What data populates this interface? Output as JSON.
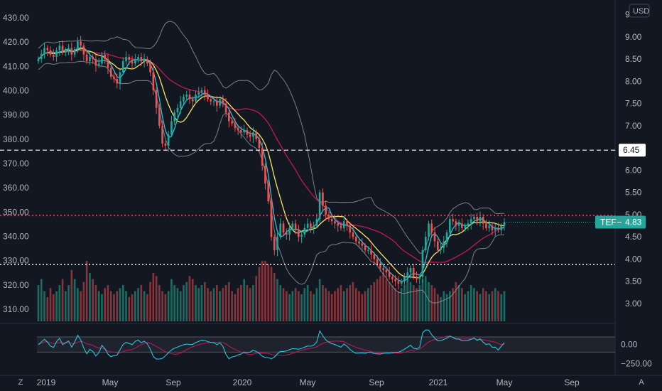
{
  "chart_data": {
    "type": "candlestick",
    "symbol": "TEF",
    "currency": "USD",
    "last_price_label": "4.83",
    "left_axis": {
      "ticks": [
        "430.00",
        "420.00",
        "410.00",
        "400.00",
        "390.00",
        "380.00",
        "370.00",
        "360.00",
        "350.00",
        "340.00",
        "330.00",
        "320.00",
        "310.00"
      ],
      "range": [
        305,
        435
      ]
    },
    "right_axis": {
      "ticks": [
        "9.50",
        "9.00",
        "8.50",
        "8.00",
        "7.50",
        "7.00",
        "6.45",
        "6.00",
        "5.50",
        "5.00",
        "4.50",
        "4.00",
        "3.50",
        "3.00"
      ],
      "range": [
        2.6,
        9.7
      ]
    },
    "x_axis": {
      "ticks": [
        "2019",
        "May",
        "Sep",
        "2020",
        "May",
        "Sep",
        "2021",
        "May",
        "Sep"
      ]
    },
    "horizontal_levels": [
      {
        "value": 6.45,
        "style": "dashed",
        "color": "#ffffff",
        "label": "6.45"
      },
      {
        "value": 4.98,
        "style": "dotted",
        "color": "#f23645"
      },
      {
        "value": 3.88,
        "style": "dotted",
        "color": "#d1d4dc"
      }
    ],
    "close_series": [
      8.5,
      8.62,
      8.75,
      8.7,
      8.6,
      8.55,
      8.7,
      8.8,
      8.65,
      8.7,
      8.75,
      8.6,
      8.72,
      8.9,
      8.8,
      8.6,
      8.45,
      8.55,
      8.5,
      8.35,
      8.4,
      8.6,
      8.5,
      8.3,
      8.1,
      8.05,
      7.95,
      8.2,
      8.45,
      8.55,
      8.48,
      8.4,
      8.5,
      8.55,
      8.45,
      8.5,
      8.4,
      8.2,
      7.8,
      7.4,
      7.0,
      6.6,
      6.55,
      6.8,
      7.1,
      7.3,
      7.4,
      7.55,
      7.65,
      7.7,
      7.6,
      7.55,
      7.7,
      7.75,
      7.8,
      7.7,
      7.6,
      7.55,
      7.55,
      7.45,
      7.6,
      7.5,
      7.3,
      7.1,
      7.05,
      6.95,
      6.9,
      6.85,
      6.9,
      6.8,
      6.75,
      6.85,
      6.7,
      6.5,
      6.1,
      5.7,
      5.3,
      4.5,
      4.2,
      4.5,
      4.8,
      4.6,
      4.55,
      4.7,
      4.8,
      4.65,
      4.5,
      4.55,
      4.7,
      4.8,
      4.7,
      4.75,
      4.9,
      5.5,
      5.2,
      5.0,
      4.9,
      4.85,
      4.8,
      4.75,
      4.7,
      4.85,
      4.75,
      4.6,
      4.5,
      4.4,
      4.35,
      4.3,
      4.2,
      4.2,
      4.1,
      4.0,
      3.9,
      3.8,
      3.75,
      3.7,
      3.6,
      3.55,
      3.5,
      3.45,
      3.5,
      3.6,
      3.7,
      3.8,
      3.6,
      3.55,
      3.6,
      4.2,
      4.5,
      4.8,
      4.6,
      4.4,
      4.2,
      4.25,
      4.4,
      4.6,
      4.9,
      4.85,
      4.75,
      4.8,
      4.7,
      4.75,
      4.8,
      4.9,
      4.95,
      4.85,
      4.95,
      4.8,
      4.7,
      4.75,
      4.65,
      4.7,
      4.65,
      4.75,
      4.83
    ],
    "volume_relative": [
      0.6,
      0.7,
      0.5,
      0.4,
      0.55,
      0.45,
      0.5,
      0.6,
      0.7,
      0.5,
      0.6,
      0.85,
      0.7,
      0.55,
      0.5,
      0.65,
      1.0,
      0.8,
      0.7,
      0.6,
      0.5,
      0.45,
      0.55,
      0.6,
      0.5,
      0.45,
      0.5,
      0.55,
      0.6,
      0.5,
      0.4,
      0.45,
      0.5,
      0.55,
      0.6,
      0.5,
      0.45,
      0.65,
      0.8,
      0.75,
      0.6,
      0.5,
      0.45,
      0.5,
      0.7,
      0.6,
      0.55,
      0.5,
      0.6,
      0.65,
      0.75,
      0.7,
      0.6,
      0.55,
      0.6,
      0.65,
      0.55,
      0.5,
      0.55,
      0.6,
      0.5,
      0.55,
      0.6,
      0.65,
      0.5,
      0.45,
      0.55,
      0.6,
      0.7,
      0.6,
      0.55,
      0.6,
      0.75,
      0.9,
      1.0,
      1.0,
      0.95,
      0.9,
      0.8,
      0.7,
      0.6,
      0.55,
      0.5,
      0.45,
      0.5,
      0.55,
      0.5,
      0.45,
      0.55,
      0.6,
      0.5,
      0.45,
      0.55,
      0.7,
      0.6,
      0.55,
      0.5,
      0.45,
      0.5,
      0.55,
      0.6,
      0.5,
      0.55,
      0.6,
      0.65,
      0.55,
      0.5,
      0.45,
      0.5,
      0.55,
      0.6,
      0.65,
      0.7,
      0.75,
      0.8,
      0.7,
      0.65,
      0.6,
      0.55,
      0.5,
      0.55,
      0.6,
      0.7,
      0.65,
      0.6,
      0.55,
      0.6,
      0.7,
      0.75,
      0.65,
      0.6,
      0.55,
      0.45,
      0.4,
      0.5,
      0.45,
      0.5,
      0.55,
      0.65,
      0.6,
      0.55,
      0.45,
      0.5,
      0.6,
      0.55,
      0.5,
      0.45,
      0.55,
      0.5,
      0.45,
      0.5,
      0.55,
      0.5,
      0.45,
      0.5
    ],
    "oscillator": {
      "ticks": [
        "0.00",
        "−250.00"
      ],
      "range": [
        -350,
        250
      ]
    },
    "bottom_buttons": {
      "left": "Z",
      "right": "A"
    }
  }
}
